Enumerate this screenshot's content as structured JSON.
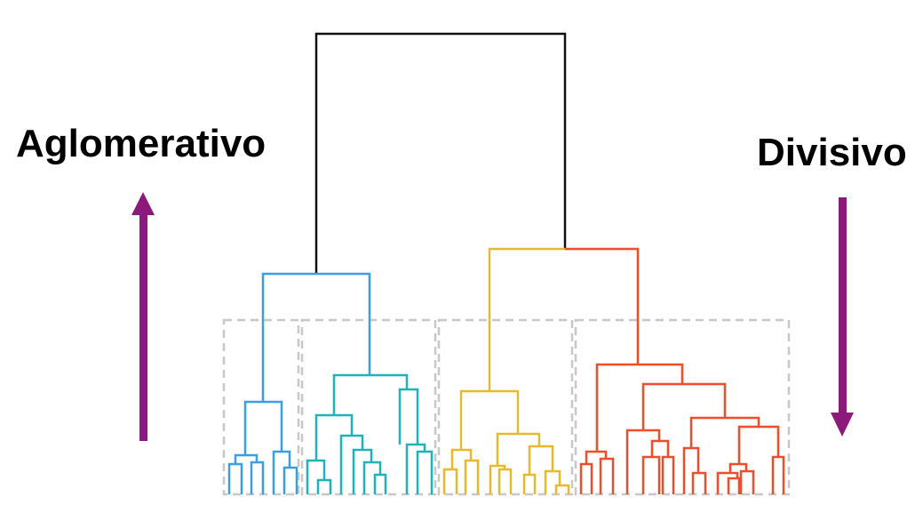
{
  "labels": {
    "agglomerative": "Aglomerativo",
    "divisive": "Divisivo"
  },
  "colors": {
    "root": "#111111",
    "cluster_blue": "#3b9ee3",
    "cluster_teal": "#1fb3b8",
    "cluster_yellow": "#e8b92a",
    "cluster_red": "#f04e2a",
    "arrow": "#8b1a7a",
    "dashed_box": "#c8c8c8"
  },
  "arrows": {
    "agglomerative_direction": "up",
    "divisive_direction": "down"
  }
}
